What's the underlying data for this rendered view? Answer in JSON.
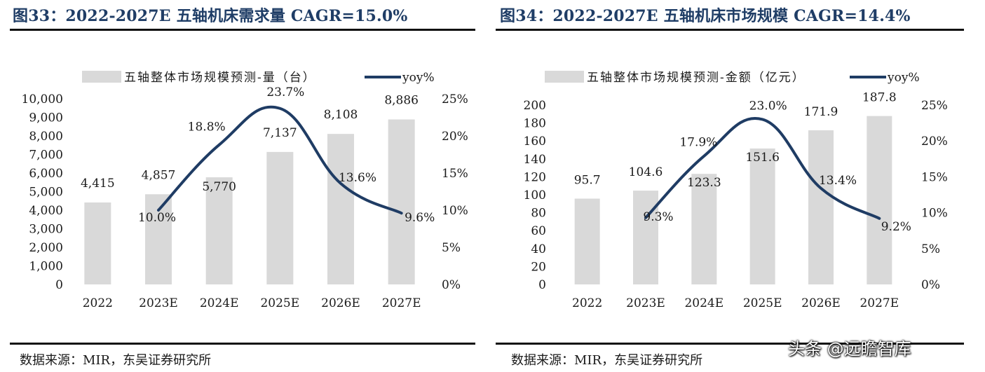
{
  "charts": [
    {
      "figure_title": "图33：2022-2027E 五轴机床需求量 CAGR=15.0%",
      "source": "数据来源：MIR，东吴证券研究所"
    },
    {
      "figure_title": "图34：2022-2027E 五轴机床市场规模 CAGR=14.4%",
      "source": "数据来源：MIR，东吴证券研究所"
    }
  ],
  "chart_data": [
    {
      "type": "bar",
      "categories": [
        "2022",
        "2023E",
        "2024E",
        "2025E",
        "2026E",
        "2027E"
      ],
      "series": [
        {
          "name": "五轴整体市场规模预测-量（台）",
          "type": "bar",
          "axis": "left",
          "values": [
            4415,
            4857,
            5770,
            7137,
            8108,
            8886
          ],
          "labels": [
            "4,415",
            "4,857",
            "5,770",
            "7,137",
            "8,108",
            "8,886"
          ]
        },
        {
          "name": "yoy%",
          "type": "line",
          "axis": "right",
          "values": [
            null,
            10.0,
            18.8,
            23.7,
            13.6,
            9.6
          ],
          "labels": [
            "",
            "10.0%",
            "18.8%",
            "23.7%",
            "13.6%",
            "9.6%"
          ]
        }
      ],
      "ylim": [
        0,
        10000
      ],
      "y_ticks": [
        "0",
        "1,000",
        "2,000",
        "3,000",
        "4,000",
        "5,000",
        "6,000",
        "7,000",
        "8,000",
        "9,000",
        "10,000"
      ],
      "y2lim": [
        0,
        25
      ],
      "y2_ticks": [
        "0%",
        "5%",
        "10%",
        "15%",
        "20%",
        "25%"
      ],
      "legend_position": "top",
      "colors": {
        "bar": "#d9d9d9",
        "line": "#1f3c64"
      }
    },
    {
      "type": "bar",
      "categories": [
        "2022",
        "2023E",
        "2024E",
        "2025E",
        "2026E",
        "2027E"
      ],
      "series": [
        {
          "name": "五轴整体市场规模预测-金额（亿元）",
          "type": "bar",
          "axis": "left",
          "values": [
            95.7,
            104.6,
            123.3,
            151.6,
            171.9,
            187.8
          ],
          "labels": [
            "95.7",
            "104.6",
            "123.3",
            "151.6",
            "171.9",
            "187.8"
          ]
        },
        {
          "name": "yoy%",
          "type": "line",
          "axis": "right",
          "values": [
            null,
            9.3,
            17.9,
            23.0,
            13.4,
            9.2
          ],
          "labels": [
            "",
            "9.3%",
            "17.9%",
            "23.0%",
            "13.4%",
            "9.2%"
          ]
        }
      ],
      "ylim": [
        0,
        200
      ],
      "y_ticks": [
        "0",
        "20",
        "40",
        "60",
        "80",
        "100",
        "120",
        "140",
        "160",
        "180",
        "200"
      ],
      "y2lim": [
        0,
        25
      ],
      "y2_ticks": [
        "0%",
        "5%",
        "10%",
        "15%",
        "20%",
        "25%"
      ],
      "legend_position": "top",
      "colors": {
        "bar": "#d9d9d9",
        "line": "#1f3c64"
      }
    }
  ],
  "watermark": "头条 @远瞻智库"
}
